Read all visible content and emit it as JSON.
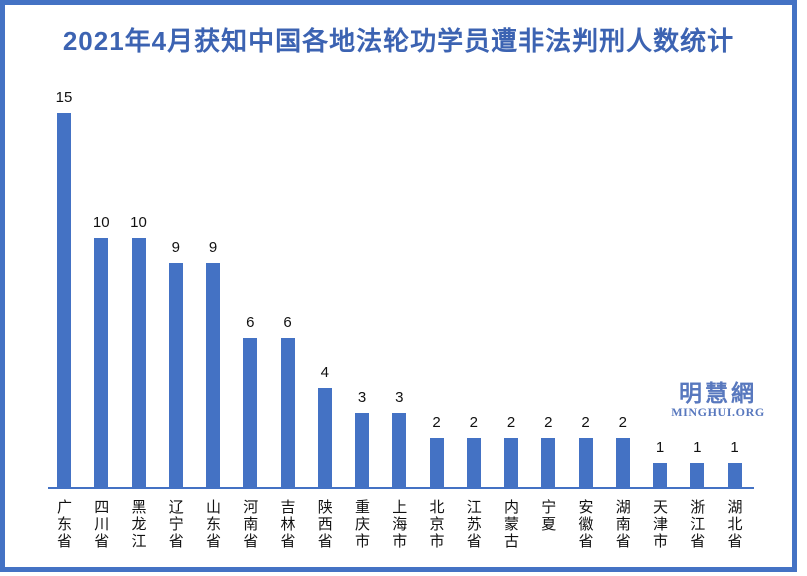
{
  "title": "2021年4月获知中国各地法轮功学员遭非法判刑人数统计",
  "watermark": {
    "chinese": "明慧網",
    "english": "MINGHUI.ORG"
  },
  "colors": {
    "bar": "#4472C4",
    "frame": "#4472C4",
    "axis": "#4472C4",
    "title": "#3C63B2",
    "watermark": "#5878BE",
    "value_label": "#111111"
  },
  "chart_data": {
    "type": "bar",
    "title": "2021年4月获知中国各地法轮功学员遭非法判刑人数统计",
    "categories": [
      "广东省",
      "四川省",
      "黑龙江",
      "辽宁省",
      "山东省",
      "河南省",
      "吉林省",
      "陕西省",
      "重庆市",
      "上海市",
      "北京市",
      "江苏省",
      "内蒙古",
      "宁夏",
      "安徽省",
      "湖南省",
      "天津市",
      "浙江省",
      "湖北省"
    ],
    "values": [
      15,
      10,
      10,
      9,
      9,
      6,
      6,
      4,
      3,
      3,
      2,
      2,
      2,
      2,
      2,
      2,
      1,
      1,
      1
    ],
    "xlabel": "",
    "ylabel": "",
    "ylim": [
      0,
      16
    ],
    "grid": false,
    "legend": null,
    "data_labels": true,
    "x_tick_orientation": "vertical-upright"
  }
}
